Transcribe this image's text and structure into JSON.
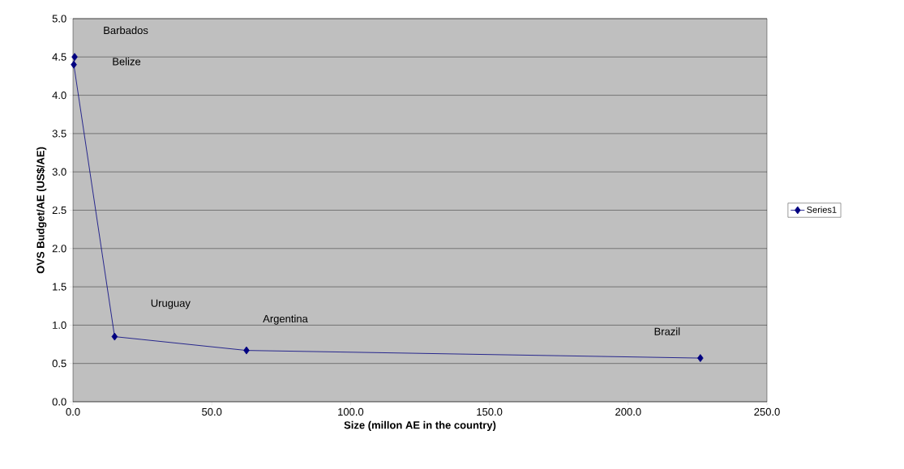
{
  "chart_data": {
    "type": "line",
    "xlabel": "Size (millon AE in the country)",
    "ylabel": "OVS Budget/AE (US$/AE)",
    "series": [
      {
        "name": "Series1",
        "color": "#000080",
        "x": [
          0.6,
          0.3,
          15,
          62.5,
          226
        ],
        "values": [
          4.5,
          4.4,
          0.85,
          0.67,
          0.57
        ]
      }
    ],
    "xlim": [
      0,
      250
    ],
    "xticks": [
      {
        "value": 0,
        "label": "0.0"
      },
      {
        "value": 50,
        "label": "50.0"
      },
      {
        "value": 100,
        "label": "100.0"
      },
      {
        "value": 150,
        "label": "150.0"
      },
      {
        "value": 200,
        "label": "200.0"
      },
      {
        "value": 250,
        "label": "250.0"
      }
    ],
    "ylim": [
      0,
      5
    ],
    "yticks": [
      {
        "value": 0,
        "label": "0.0"
      },
      {
        "value": 0.5,
        "label": "0.5"
      },
      {
        "value": 1,
        "label": "1.0"
      },
      {
        "value": 1.5,
        "label": "1.5"
      },
      {
        "value": 2,
        "label": "2.0"
      },
      {
        "value": 2.5,
        "label": "2.5"
      },
      {
        "value": 3,
        "label": "3.0"
      },
      {
        "value": 3.5,
        "label": "3.5"
      },
      {
        "value": 4,
        "label": "4.0"
      },
      {
        "value": 4.5,
        "label": "4.5"
      },
      {
        "value": 5,
        "label": "5.0"
      }
    ],
    "grid": "y",
    "legend": "right",
    "marker": "diamond",
    "line_style": "solid",
    "annotations": [
      "Barbados",
      "Belize",
      "Uruguay",
      "Argentina",
      "Brazil"
    ]
  }
}
